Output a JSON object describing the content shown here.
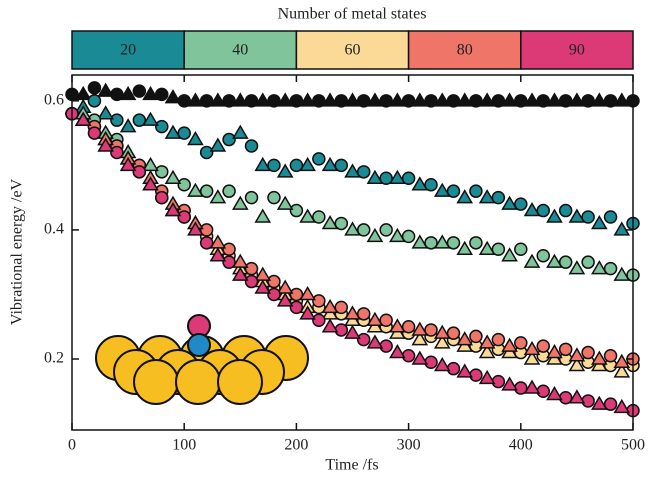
{
  "chart_data": {
    "type": "scatter",
    "xlabel": "Time /fs",
    "ylabel": "Vibrational energy /eV",
    "xlim": [
      0,
      500
    ],
    "xticks": [
      0,
      100,
      200,
      300,
      400,
      500
    ],
    "ylim": [
      0.09,
      0.64
    ],
    "yticks": [
      0.2,
      0.4,
      0.6
    ],
    "colorbar": {
      "title": "Number of metal states",
      "labels": [
        "20",
        "40",
        "60",
        "80",
        "90"
      ],
      "colors": [
        "#1a8a94",
        "#80c49b",
        "#fbda98",
        "#ef7569",
        "#dc3a76"
      ]
    },
    "series": [
      {
        "color": "#111111",
        "marker": "circle",
        "x": [
          0,
          20,
          40,
          60,
          80,
          100,
          120,
          140,
          160,
          180,
          200,
          220,
          240,
          260,
          280,
          300,
          320,
          340,
          360,
          380,
          400,
          420,
          440,
          460,
          480,
          500
        ],
        "values": [
          0.61,
          0.62,
          0.61,
          0.615,
          0.61,
          0.6,
          0.6,
          0.6,
          0.6,
          0.6,
          0.6,
          0.6,
          0.6,
          0.6,
          0.6,
          0.6,
          0.6,
          0.6,
          0.6,
          0.6,
          0.6,
          0.6,
          0.6,
          0.6,
          0.6,
          0.6
        ]
      },
      {
        "color": "#111111",
        "marker": "triangle",
        "x": [
          10,
          30,
          50,
          70,
          90,
          110,
          130,
          150,
          170,
          190,
          210,
          230,
          250,
          270,
          290,
          310,
          330,
          350,
          370,
          390,
          410,
          430,
          450,
          470,
          490
        ],
        "values": [
          0.61,
          0.615,
          0.61,
          0.61,
          0.605,
          0.6,
          0.6,
          0.6,
          0.6,
          0.6,
          0.6,
          0.6,
          0.6,
          0.6,
          0.6,
          0.6,
          0.6,
          0.6,
          0.6,
          0.6,
          0.6,
          0.6,
          0.6,
          0.6,
          0.6
        ]
      },
      {
        "color": "#1a8a94",
        "marker": "circle",
        "x": [
          0,
          20,
          40,
          60,
          80,
          100,
          120,
          140,
          160,
          180,
          200,
          220,
          240,
          260,
          280,
          300,
          320,
          340,
          360,
          380,
          400,
          420,
          440,
          460,
          480,
          500
        ],
        "values": [
          0.58,
          0.6,
          0.57,
          0.57,
          0.56,
          0.55,
          0.52,
          0.54,
          0.53,
          0.5,
          0.5,
          0.51,
          0.5,
          0.49,
          0.48,
          0.48,
          0.47,
          0.46,
          0.46,
          0.45,
          0.44,
          0.43,
          0.43,
          0.42,
          0.42,
          0.41
        ]
      },
      {
        "color": "#1a8a94",
        "marker": "triangle",
        "x": [
          10,
          30,
          50,
          70,
          90,
          110,
          130,
          150,
          170,
          190,
          210,
          230,
          250,
          270,
          290,
          310,
          330,
          350,
          370,
          390,
          410,
          430,
          450,
          470,
          490
        ],
        "values": [
          0.59,
          0.58,
          0.56,
          0.57,
          0.55,
          0.54,
          0.53,
          0.55,
          0.5,
          0.49,
          0.5,
          0.5,
          0.49,
          0.48,
          0.48,
          0.47,
          0.46,
          0.45,
          0.45,
          0.44,
          0.43,
          0.42,
          0.42,
          0.41,
          0.4
        ]
      },
      {
        "color": "#80c49b",
        "marker": "circle",
        "x": [
          0,
          20,
          40,
          60,
          80,
          100,
          120,
          140,
          160,
          180,
          200,
          220,
          240,
          260,
          280,
          300,
          320,
          340,
          360,
          380,
          400,
          420,
          440,
          460,
          480,
          500
        ],
        "values": [
          0.58,
          0.57,
          0.54,
          0.5,
          0.49,
          0.47,
          0.46,
          0.46,
          0.45,
          0.45,
          0.43,
          0.42,
          0.41,
          0.4,
          0.4,
          0.39,
          0.38,
          0.38,
          0.38,
          0.37,
          0.37,
          0.36,
          0.35,
          0.35,
          0.34,
          0.33
        ]
      },
      {
        "color": "#80c49b",
        "marker": "triangle",
        "x": [
          10,
          30,
          50,
          70,
          90,
          110,
          130,
          150,
          170,
          190,
          210,
          230,
          250,
          270,
          290,
          310,
          330,
          350,
          370,
          390,
          410,
          430,
          450,
          470,
          490
        ],
        "values": [
          0.58,
          0.55,
          0.52,
          0.5,
          0.48,
          0.46,
          0.45,
          0.44,
          0.42,
          0.44,
          0.42,
          0.41,
          0.4,
          0.39,
          0.39,
          0.38,
          0.38,
          0.37,
          0.37,
          0.36,
          0.35,
          0.35,
          0.34,
          0.34,
          0.33
        ]
      },
      {
        "color": "#fbda98",
        "marker": "circle",
        "x": [
          0,
          20,
          40,
          60,
          80,
          100,
          120,
          140,
          160,
          180,
          200,
          220,
          240,
          260,
          280,
          300,
          320,
          340,
          360,
          380,
          400,
          420,
          440,
          460,
          480,
          500
        ],
        "values": [
          0.58,
          0.56,
          0.53,
          0.49,
          0.45,
          0.42,
          0.39,
          0.36,
          0.33,
          0.31,
          0.29,
          0.28,
          0.27,
          0.26,
          0.25,
          0.24,
          0.235,
          0.23,
          0.22,
          0.215,
          0.21,
          0.205,
          0.2,
          0.195,
          0.19,
          0.19
        ]
      },
      {
        "color": "#fbda98",
        "marker": "triangle",
        "x": [
          10,
          30,
          50,
          70,
          90,
          110,
          130,
          150,
          170,
          190,
          210,
          230,
          250,
          270,
          290,
          310,
          330,
          350,
          370,
          390,
          410,
          430,
          450,
          470,
          490
        ],
        "values": [
          0.57,
          0.54,
          0.51,
          0.47,
          0.43,
          0.41,
          0.37,
          0.34,
          0.32,
          0.3,
          0.28,
          0.27,
          0.26,
          0.25,
          0.24,
          0.23,
          0.225,
          0.22,
          0.21,
          0.21,
          0.2,
          0.2,
          0.19,
          0.19,
          0.18
        ]
      },
      {
        "color": "#ef7569",
        "marker": "circle",
        "x": [
          0,
          20,
          40,
          60,
          80,
          100,
          120,
          140,
          160,
          180,
          200,
          220,
          240,
          260,
          280,
          300,
          320,
          340,
          360,
          380,
          400,
          420,
          440,
          460,
          480,
          500
        ],
        "values": [
          0.58,
          0.56,
          0.53,
          0.5,
          0.46,
          0.43,
          0.4,
          0.37,
          0.34,
          0.32,
          0.3,
          0.29,
          0.28,
          0.27,
          0.26,
          0.25,
          0.245,
          0.24,
          0.235,
          0.23,
          0.225,
          0.22,
          0.215,
          0.21,
          0.205,
          0.2
        ]
      },
      {
        "color": "#ef7569",
        "marker": "triangle",
        "x": [
          10,
          30,
          50,
          70,
          90,
          110,
          130,
          150,
          170,
          190,
          210,
          230,
          250,
          270,
          290,
          310,
          330,
          350,
          370,
          390,
          410,
          430,
          450,
          470,
          490
        ],
        "values": [
          0.57,
          0.54,
          0.51,
          0.48,
          0.44,
          0.41,
          0.38,
          0.35,
          0.33,
          0.31,
          0.3,
          0.28,
          0.27,
          0.26,
          0.25,
          0.245,
          0.24,
          0.23,
          0.225,
          0.22,
          0.215,
          0.21,
          0.205,
          0.2,
          0.195
        ]
      },
      {
        "color": "#dc3a76",
        "marker": "circle",
        "x": [
          0,
          20,
          40,
          60,
          80,
          100,
          120,
          140,
          160,
          180,
          200,
          220,
          240,
          260,
          280,
          300,
          320,
          340,
          360,
          380,
          400,
          420,
          440,
          460,
          480,
          500
        ],
        "values": [
          0.58,
          0.55,
          0.52,
          0.49,
          0.45,
          0.42,
          0.38,
          0.35,
          0.32,
          0.3,
          0.28,
          0.26,
          0.245,
          0.23,
          0.22,
          0.205,
          0.195,
          0.185,
          0.175,
          0.165,
          0.155,
          0.15,
          0.14,
          0.135,
          0.13,
          0.12
        ]
      },
      {
        "color": "#dc3a76",
        "marker": "triangle",
        "x": [
          10,
          30,
          50,
          70,
          90,
          110,
          130,
          150,
          170,
          190,
          210,
          230,
          250,
          270,
          290,
          310,
          330,
          350,
          370,
          390,
          410,
          430,
          450,
          470,
          490
        ],
        "values": [
          0.57,
          0.53,
          0.5,
          0.47,
          0.43,
          0.4,
          0.36,
          0.33,
          0.31,
          0.29,
          0.27,
          0.25,
          0.24,
          0.225,
          0.21,
          0.2,
          0.19,
          0.18,
          0.17,
          0.16,
          0.155,
          0.145,
          0.14,
          0.13,
          0.125
        ]
      }
    ]
  }
}
